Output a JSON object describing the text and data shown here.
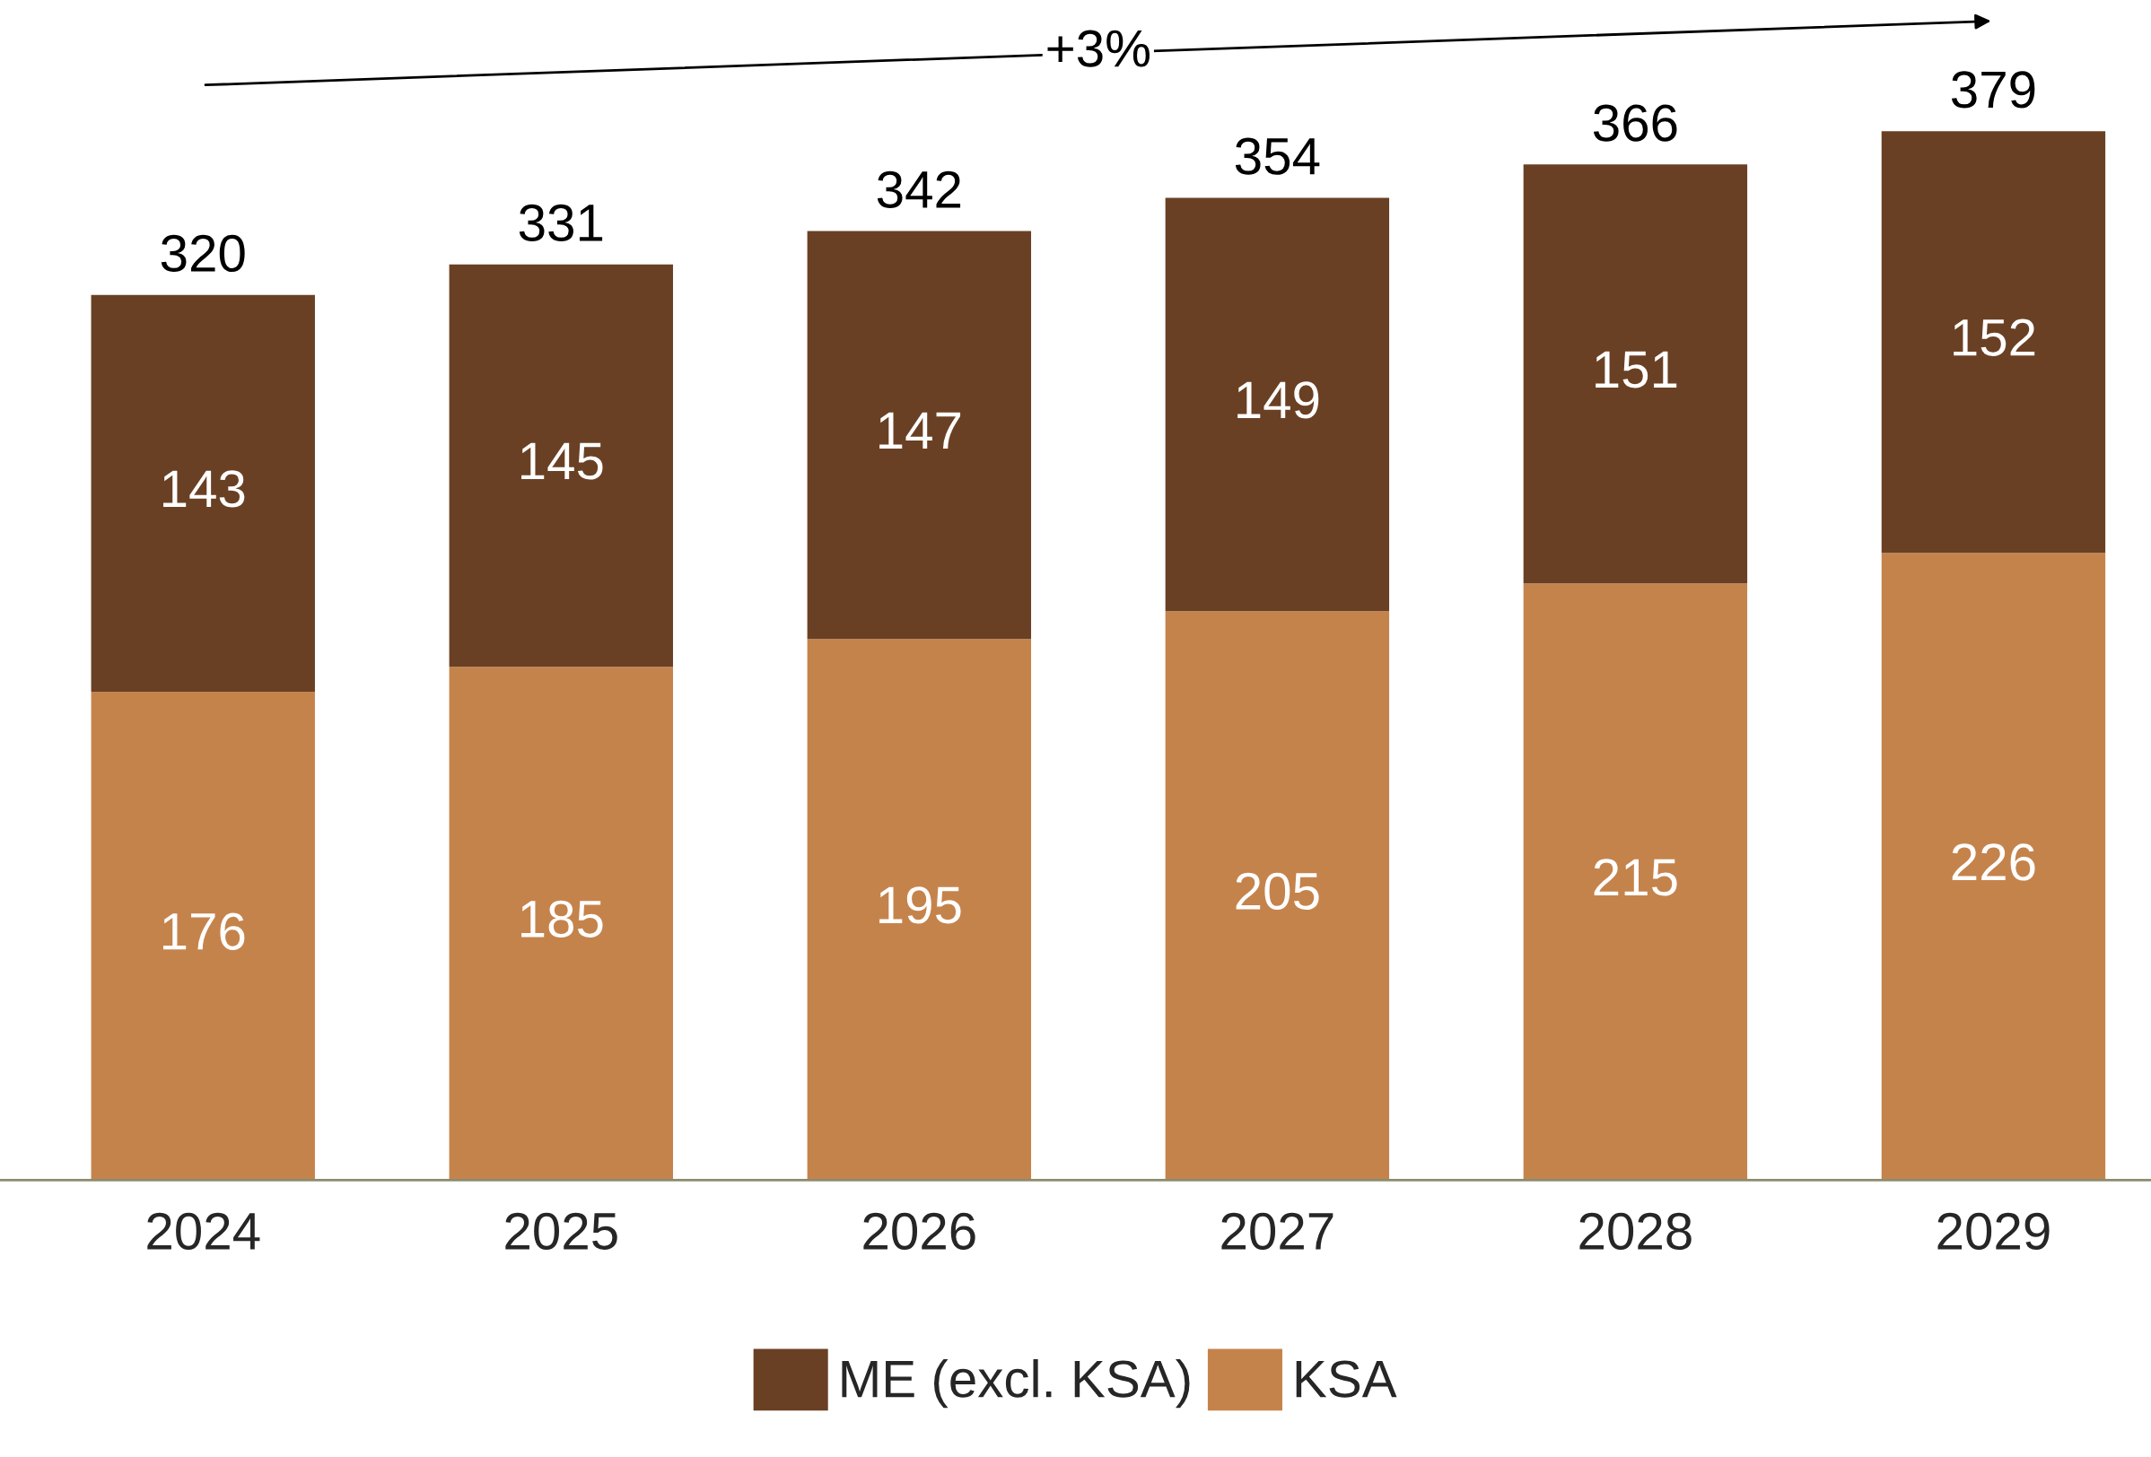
{
  "chart_data": {
    "type": "bar",
    "stacked": true,
    "categories": [
      "2024",
      "2025",
      "2026",
      "2027",
      "2028",
      "2029"
    ],
    "series": [
      {
        "name": "KSA",
        "color": "#c5834c",
        "values": [
          176,
          185,
          195,
          205,
          215,
          226
        ]
      },
      {
        "name": "ME (excl. KSA)",
        "color": "#6a4024",
        "values": [
          143,
          145,
          147,
          149,
          151,
          152
        ]
      }
    ],
    "data_labels": true,
    "totals": [
      "320",
      "331",
      "342",
      "354",
      "366",
      "379"
    ],
    "annotations": [
      "+3%"
    ],
    "legend": "bottom",
    "grid": false
  }
}
